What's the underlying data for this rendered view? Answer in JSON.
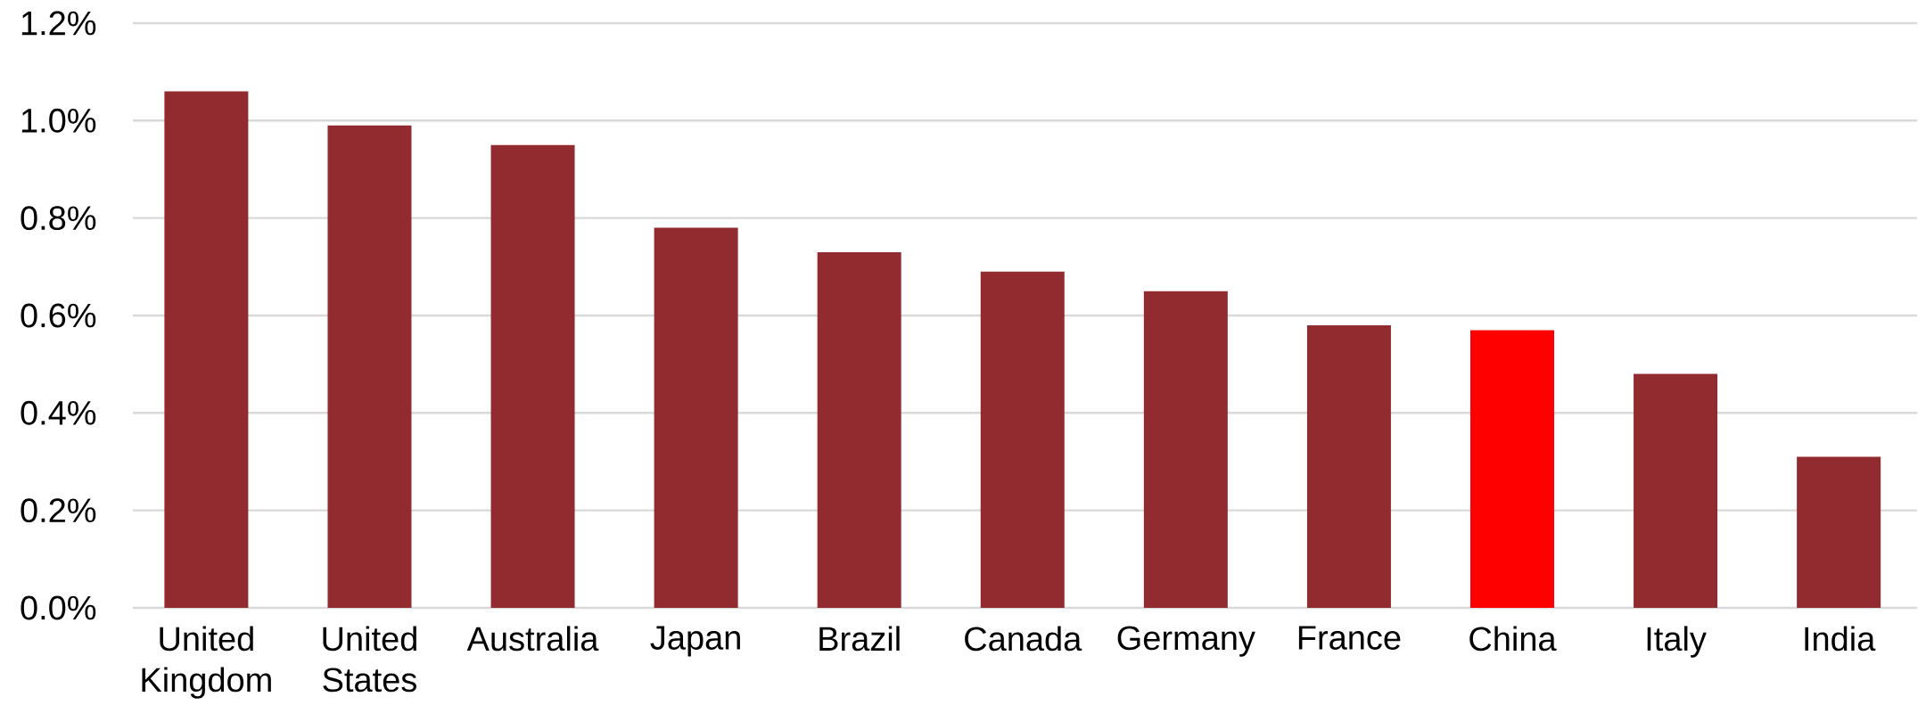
{
  "chart_data": {
    "type": "bar",
    "categories": [
      "United Kingdom",
      "United States",
      "Australia",
      "Japan",
      "Brazil",
      "Canada",
      "Germany",
      "France",
      "China",
      "Italy",
      "India"
    ],
    "values": [
      1.06,
      0.99,
      0.95,
      0.78,
      0.73,
      0.69,
      0.65,
      0.58,
      0.57,
      0.48,
      0.31
    ],
    "colors": [
      "#922b2f",
      "#922b2f",
      "#922b2f",
      "#922b2f",
      "#922b2f",
      "#922b2f",
      "#922b2f",
      "#922b2f",
      "#ff0000",
      "#922b2f",
      "#922b2f"
    ],
    "ylim": [
      0,
      1.2
    ],
    "yticks": [
      {
        "value": 0,
        "label": "0.0%"
      },
      {
        "value": 0.2,
        "label": "0.2%"
      },
      {
        "value": 0.4,
        "label": "0.4%"
      },
      {
        "value": 0.6,
        "label": "0.6%"
      },
      {
        "value": 0.8,
        "label": "0.8%"
      },
      {
        "value": 1.0,
        "label": "1.0%"
      },
      {
        "value": 1.2,
        "label": "1.2%"
      }
    ],
    "grid": "y"
  }
}
